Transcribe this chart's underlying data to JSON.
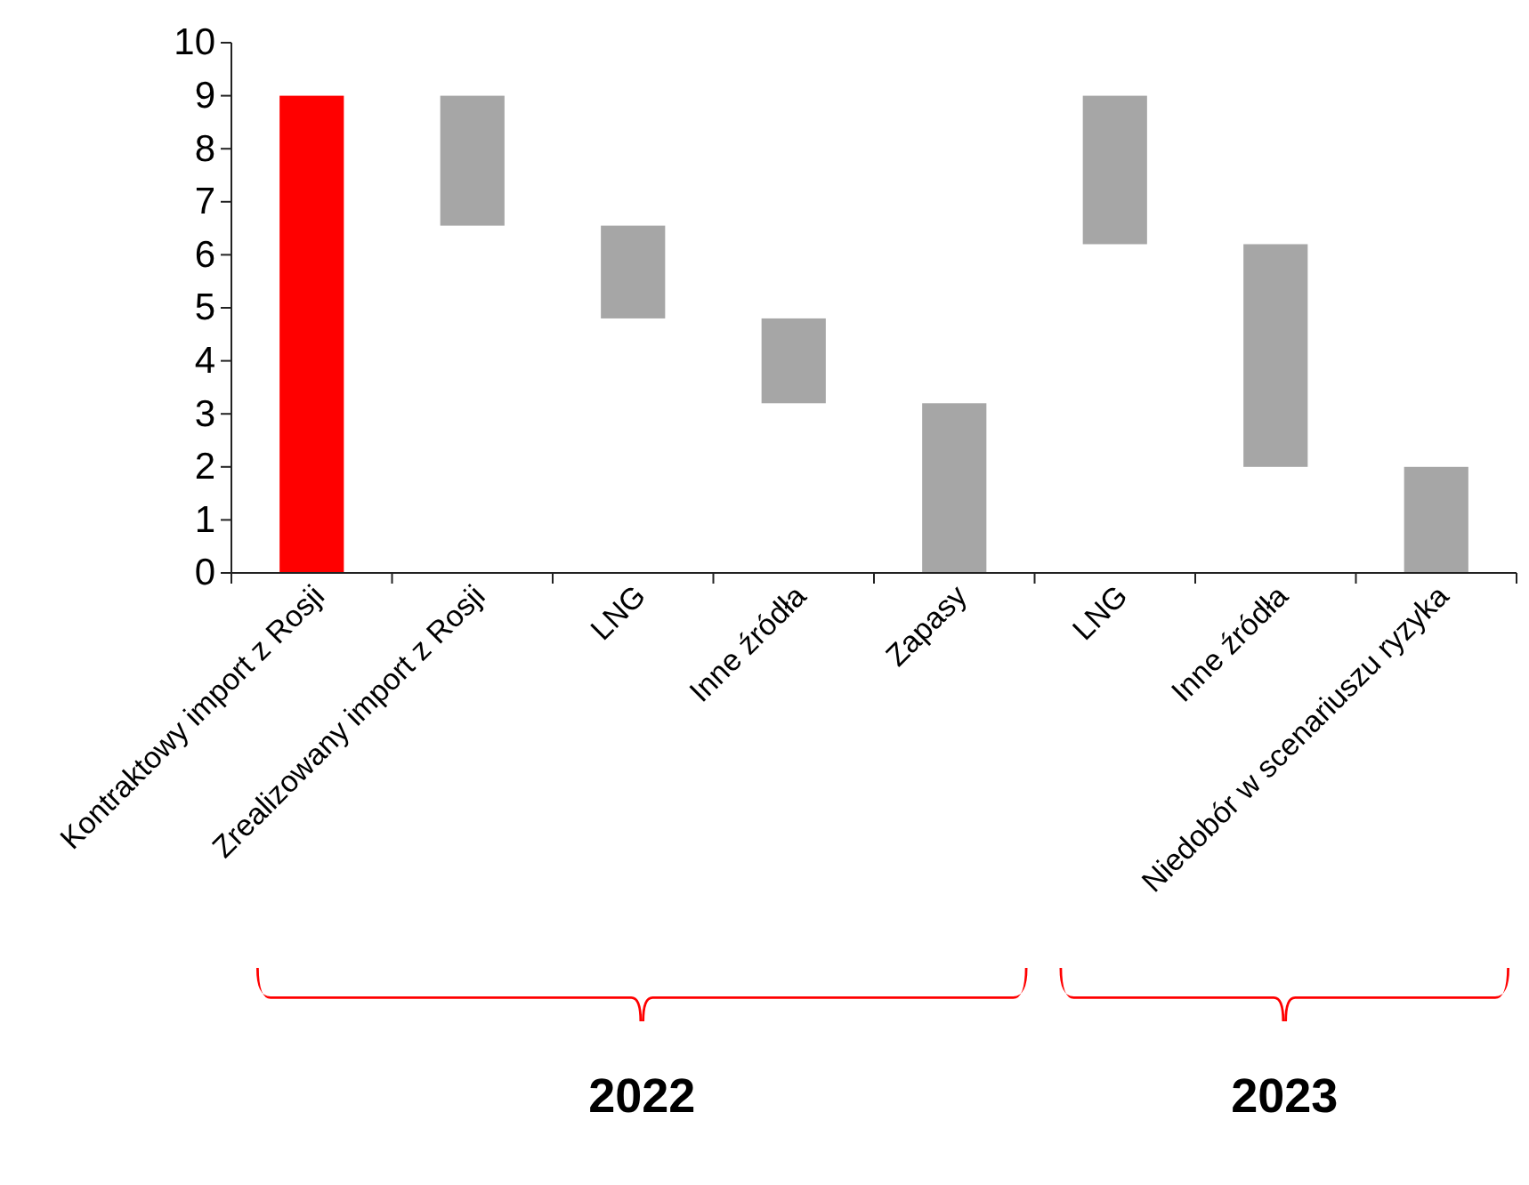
{
  "chart_data": {
    "type": "bar",
    "categories": [
      "Kontraktowy import z Rosji",
      "Zrealizowany import z Rosji",
      "LNG",
      "Inne źródła",
      "Zapasy",
      "LNG",
      "Inne źródła",
      "Niedobór w scenariuszu ryzyka"
    ],
    "values": [
      9,
      2.45,
      1.75,
      1.6,
      3.2,
      2.8,
      4.2,
      2
    ],
    "base": [
      0,
      6.55,
      4.8,
      3.2,
      0,
      6.2,
      2,
      0
    ],
    "colors": [
      "#ff0000",
      "#a6a6a6",
      "#a6a6a6",
      "#a6a6a6",
      "#a6a6a6",
      "#a6a6a6",
      "#a6a6a6",
      "#a6a6a6"
    ],
    "ylim": [
      0,
      10
    ],
    "yticks": [
      0,
      1,
      2,
      3,
      4,
      5,
      6,
      7,
      8,
      9,
      10
    ],
    "grid": false,
    "annotations": [
      "2022",
      "2023"
    ]
  }
}
